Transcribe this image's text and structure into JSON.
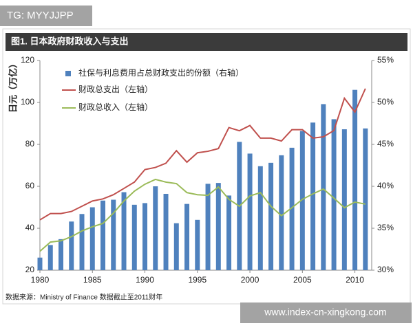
{
  "watermark_top": "TG: MYYJJPP",
  "watermark_bottom": "www.index-cn-xingkong.com",
  "chart_data": {
    "type": "bar-line",
    "title": "图1. 日本政府财政收入与支出",
    "ylabel": "日元（万亿）",
    "source": "数据来源：Ministry of Finance  数据截止至2011财年",
    "x": [
      1980,
      1981,
      1982,
      1983,
      1984,
      1985,
      1986,
      1987,
      1988,
      1989,
      1990,
      1991,
      1992,
      1993,
      1994,
      1995,
      1996,
      1997,
      1998,
      1999,
      2000,
      2001,
      2002,
      2003,
      2004,
      2005,
      2006,
      2007,
      2008,
      2009,
      2010,
      2011
    ],
    "xlim": [
      1980,
      2011.6
    ],
    "xticks": [
      1980,
      1985,
      1990,
      1995,
      2000,
      2005,
      2010
    ],
    "ylim": [
      20,
      120
    ],
    "yticks": [
      20,
      40,
      60,
      80,
      100,
      120
    ],
    "y2lim": [
      30,
      55
    ],
    "y2ticks": [
      {
        "value": 30,
        "label": "30%"
      },
      {
        "value": 35,
        "label": "35%"
      },
      {
        "value": 40,
        "label": "40%"
      },
      {
        "value": 45,
        "label": "45%"
      },
      {
        "value": 50,
        "label": "50%"
      },
      {
        "value": 55,
        "label": "55%"
      }
    ],
    "grid": false,
    "series": [
      {
        "name": "社保与利息费用占总财政支出的份额（右轴）",
        "type": "bar",
        "axis": "y2",
        "color": "#4f81bd",
        "values": [
          31.5,
          33.0,
          33.7,
          35.8,
          36.7,
          37.5,
          38.3,
          38.4,
          39.3,
          37.8,
          38.0,
          40.0,
          39.1,
          35.6,
          37.9,
          36.0,
          40.3,
          40.4,
          38.9,
          45.3,
          43.9,
          42.4,
          42.8,
          43.7,
          44.6,
          46.6,
          47.6,
          49.8,
          48.0,
          46.8,
          51.5,
          46.9
        ]
      },
      {
        "name": "财政总支出（左轴）",
        "type": "line",
        "color": "#c0504d",
        "values": [
          44,
          47,
          47,
          48,
          50.5,
          53,
          54,
          56,
          59,
          62,
          68,
          69,
          71,
          77,
          71.5,
          76,
          76.7,
          78,
          88,
          86.5,
          89,
          83,
          83,
          81.6,
          87,
          87,
          83,
          83.6,
          86.6,
          102,
          95.4,
          106.6
        ]
      },
      {
        "name": "财政总收入（左轴）",
        "type": "line",
        "color": "#9bbb59",
        "values": [
          29,
          33.4,
          34,
          36,
          38.7,
          40.7,
          42.3,
          47.2,
          53,
          57.7,
          61,
          63.3,
          62,
          61.3,
          57,
          56,
          55.7,
          59.7,
          53.8,
          50.5,
          55.4,
          57,
          50.5,
          46,
          49.8,
          53.8,
          56.4,
          58.7,
          54.4,
          49.8,
          52.5,
          51.5
        ]
      }
    ]
  }
}
